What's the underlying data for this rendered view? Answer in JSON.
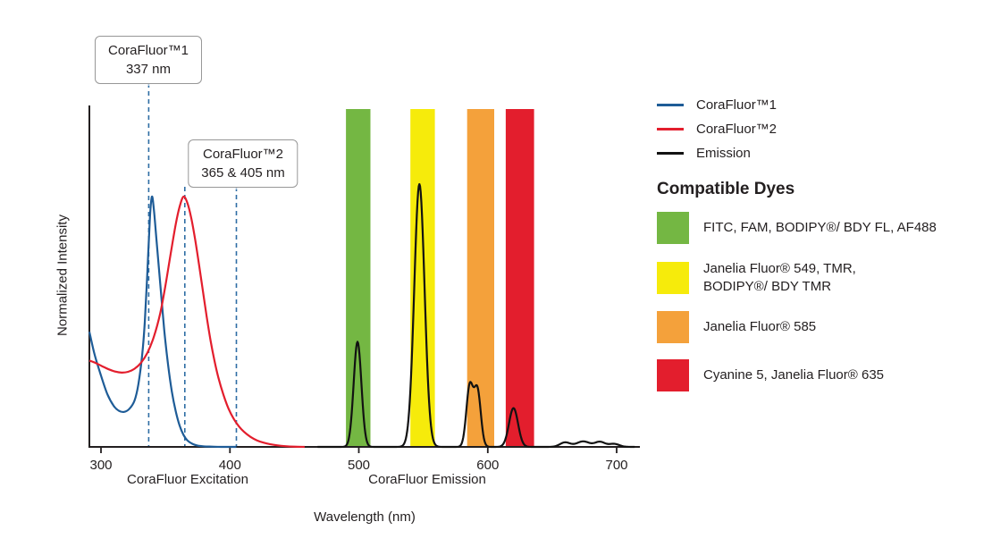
{
  "chart_data": {
    "type": "line",
    "title": "",
    "xlabel": "Wavelength (nm)",
    "ylabel": "Normalized Intensity",
    "xlim": [
      300,
      700
    ],
    "ylim": [
      0,
      1.1
    ],
    "x_ticks": [
      300,
      400,
      500,
      600,
      700
    ],
    "axis_color": "#231f20",
    "dash_color": "#2e6da4",
    "excitation_axis_label": "CoraFluor Excitation",
    "emission_axis_label": "CoraFluor Emission",
    "dashed_lines_nm": [
      337,
      365,
      405
    ],
    "annotations": [
      {
        "title": "CoraFluor™1",
        "value": "337 nm"
      },
      {
        "title": "CoraFluor™2",
        "value": "365 & 405 nm"
      }
    ],
    "bands": [
      {
        "name": "green",
        "color": "#74b743",
        "from_nm": 490,
        "to_nm": 509
      },
      {
        "name": "yellow",
        "color": "#f6eb0b",
        "from_nm": 540,
        "to_nm": 559
      },
      {
        "name": "orange",
        "color": "#f4a13b",
        "from_nm": 584,
        "to_nm": 605
      },
      {
        "name": "red",
        "color": "#e31e2d",
        "from_nm": 614,
        "to_nm": 636
      }
    ],
    "series": [
      {
        "id": "corafluor1",
        "name": "CoraFluor™1",
        "color": "#1e5c97",
        "points": [
          [
            291,
            0.46
          ],
          [
            295,
            0.37
          ],
          [
            300,
            0.285
          ],
          [
            305,
            0.21
          ],
          [
            310,
            0.163
          ],
          [
            314,
            0.144
          ],
          [
            318,
            0.14
          ],
          [
            322,
            0.152
          ],
          [
            326,
            0.185
          ],
          [
            329,
            0.25
          ],
          [
            332,
            0.37
          ],
          [
            334,
            0.5
          ],
          [
            336,
            0.7
          ],
          [
            338,
            0.92
          ],
          [
            339.5,
            1.0
          ],
          [
            341,
            0.95
          ],
          [
            343,
            0.83
          ],
          [
            346,
            0.65
          ],
          [
            349,
            0.47
          ],
          [
            352,
            0.33
          ],
          [
            355,
            0.22
          ],
          [
            358,
            0.142
          ],
          [
            361,
            0.085
          ],
          [
            364,
            0.048
          ],
          [
            367,
            0.026
          ],
          [
            371,
            0.012
          ],
          [
            375,
            0.005
          ],
          [
            380,
            0.002
          ],
          [
            386,
            0.001
          ],
          [
            393,
            0
          ],
          [
            405,
            0
          ]
        ]
      },
      {
        "id": "corafluor2",
        "name": "CoraFluor™2",
        "color": "#e31e2d",
        "points": [
          [
            291,
            0.345
          ],
          [
            296,
            0.335
          ],
          [
            301,
            0.322
          ],
          [
            306,
            0.31
          ],
          [
            311,
            0.301
          ],
          [
            316,
            0.297
          ],
          [
            321,
            0.3
          ],
          [
            326,
            0.312
          ],
          [
            331,
            0.336
          ],
          [
            336,
            0.376
          ],
          [
            341,
            0.44
          ],
          [
            346,
            0.535
          ],
          [
            350,
            0.645
          ],
          [
            354,
            0.77
          ],
          [
            358,
            0.89
          ],
          [
            361,
            0.96
          ],
          [
            364,
            1.0
          ],
          [
            367,
            0.975
          ],
          [
            370,
            0.915
          ],
          [
            373,
            0.83
          ],
          [
            376,
            0.73
          ],
          [
            379,
            0.625
          ],
          [
            382,
            0.52
          ],
          [
            385,
            0.425
          ],
          [
            388,
            0.345
          ],
          [
            391,
            0.278
          ],
          [
            395,
            0.208
          ],
          [
            399,
            0.152
          ],
          [
            403,
            0.112
          ],
          [
            407,
            0.082
          ],
          [
            411,
            0.06
          ],
          [
            416,
            0.04
          ],
          [
            421,
            0.026
          ],
          [
            426,
            0.017
          ],
          [
            431,
            0.011
          ],
          [
            437,
            0.006
          ],
          [
            443,
            0.003
          ],
          [
            450,
            0.001
          ],
          [
            458,
            0
          ]
        ]
      },
      {
        "id": "emission",
        "name": "Emission",
        "color": "#121212",
        "range": [
          468,
          714
        ],
        "peaks": [
          {
            "c": 499,
            "h": 0.42,
            "s": 3.0
          },
          {
            "c": 547,
            "h": 1.05,
            "s": 4.0
          },
          {
            "c": 586,
            "h": 0.24,
            "s": 2.6
          },
          {
            "c": 592,
            "h": 0.225,
            "s": 2.6
          },
          {
            "c": 620,
            "h": 0.155,
            "s": 3.5
          },
          {
            "c": 660,
            "h": 0.018,
            "s": 4.0
          },
          {
            "c": 674,
            "h": 0.022,
            "s": 5.0
          },
          {
            "c": 687,
            "h": 0.02,
            "s": 4.0
          },
          {
            "c": 698,
            "h": 0.012,
            "s": 4.0
          }
        ]
      }
    ]
  },
  "legend": {
    "series": [
      {
        "id": "corafluor1",
        "label": "CoraFluor™1",
        "color": "#1e5c97"
      },
      {
        "id": "corafluor2",
        "label": "CoraFluor™2",
        "color": "#e31e2d"
      },
      {
        "id": "emission",
        "label": "Emission",
        "color": "#121212"
      }
    ],
    "dyes_title": "Compatible Dyes",
    "dyes": [
      {
        "id": "green",
        "color": "#74b743",
        "lines": [
          "FITC, FAM, BODIPY®/ BDY FL, AF488"
        ]
      },
      {
        "id": "yellow",
        "color": "#f6eb0b",
        "lines": [
          "Janelia Fluor® 549, TMR,",
          "BODIPY®/ BDY TMR"
        ]
      },
      {
        "id": "orange",
        "color": "#f4a13b",
        "lines": [
          "Janelia Fluor® 585"
        ]
      },
      {
        "id": "red",
        "color": "#e31e2d",
        "lines": [
          "Cyanine 5, Janelia Fluor® 635"
        ]
      }
    ]
  }
}
